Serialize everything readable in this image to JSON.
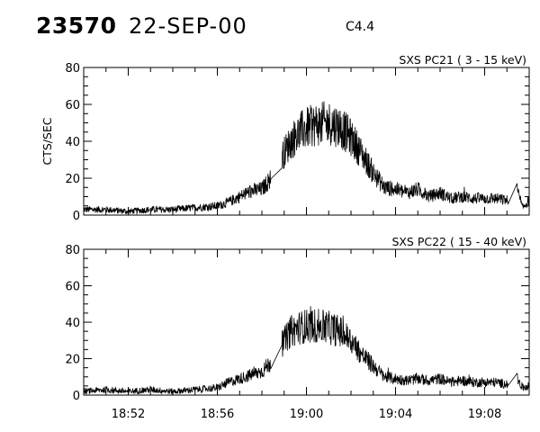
{
  "header": {
    "event_id": "23570",
    "date": "22-SEP-00",
    "flare_class": "C4.4"
  },
  "chart_data": [
    {
      "type": "line",
      "title": "SXS PC21  (  3 - 15 keV)",
      "ylabel": "CTS/SEC",
      "xlabel": "",
      "ylim": [
        0,
        80
      ],
      "yticks": [
        "0",
        "20",
        "40",
        "60",
        "80"
      ],
      "xlim": [
        "18:50",
        "19:10"
      ],
      "xticks": [
        "18:52",
        "18:56",
        "19:00",
        "19:04",
        "19:08"
      ],
      "grid": false,
      "series": [
        {
          "x": [
            "18:50",
            "18:51",
            "18:52",
            "18:53",
            "18:54",
            "18:55",
            "18:56",
            "18:56.5",
            "18:57",
            "18:57.5",
            "18:58",
            "18:58.4",
            "18:58.9",
            "18:59.3",
            "18:59.7",
            "19:00",
            "19:00.4",
            "19:01",
            "19:01.5",
            "19:02",
            "19:02.5",
            "19:03",
            "19:03.5",
            "19:04",
            "19:04.5",
            "19:05",
            "19:05.5",
            "19:06",
            "19:06.5",
            "19:07",
            "19:07.5",
            "19:08",
            "19:08.5",
            "19:09",
            "19:09.4",
            "19:09.7",
            "19:10"
          ],
          "values": [
            3,
            3,
            2,
            3,
            3,
            4,
            5,
            7,
            10,
            13,
            14,
            20,
            32,
            40,
            45,
            47,
            49,
            50,
            48,
            42,
            33,
            23,
            15,
            14,
            12,
            14,
            10,
            12,
            9,
            10,
            9,
            9,
            9,
            8,
            16,
            4,
            8
          ]
        }
      ]
    },
    {
      "type": "line",
      "title": "SXS PC22  ( 15 - 40 keV)",
      "ylabel": "",
      "xlabel": "",
      "ylim": [
        0,
        80
      ],
      "yticks": [
        "0",
        "20",
        "40",
        "60",
        "80"
      ],
      "xlim": [
        "18:50",
        "19:10"
      ],
      "xticks": [
        "18:52",
        "18:56",
        "19:00",
        "19:04",
        "19:08"
      ],
      "grid": false,
      "series": [
        {
          "x": [
            "18:50",
            "18:51",
            "18:52",
            "18:53",
            "18:54",
            "18:55",
            "18:56",
            "18:56.5",
            "18:57",
            "18:57.5",
            "18:58",
            "18:58.4",
            "18:58.9",
            "18:59.3",
            "18:59.7",
            "19:00",
            "19:00.4",
            "19:01",
            "19:01.5",
            "19:02",
            "19:02.5",
            "19:03",
            "19:03.5",
            "19:04",
            "19:04.5",
            "19:05",
            "19:05.5",
            "19:06",
            "19:06.5",
            "19:07",
            "19:07.5",
            "19:08",
            "19:08.5",
            "19:09",
            "19:09.4",
            "19:09.7",
            "19:10"
          ],
          "values": [
            2,
            3,
            2,
            3,
            2,
            3,
            4,
            7,
            9,
            11,
            13,
            18,
            28,
            35,
            37,
            38,
            38,
            37,
            35,
            30,
            22,
            16,
            10,
            9,
            8,
            9,
            8,
            9,
            7,
            8,
            7,
            7,
            7,
            6,
            10,
            4,
            5
          ]
        }
      ]
    }
  ]
}
